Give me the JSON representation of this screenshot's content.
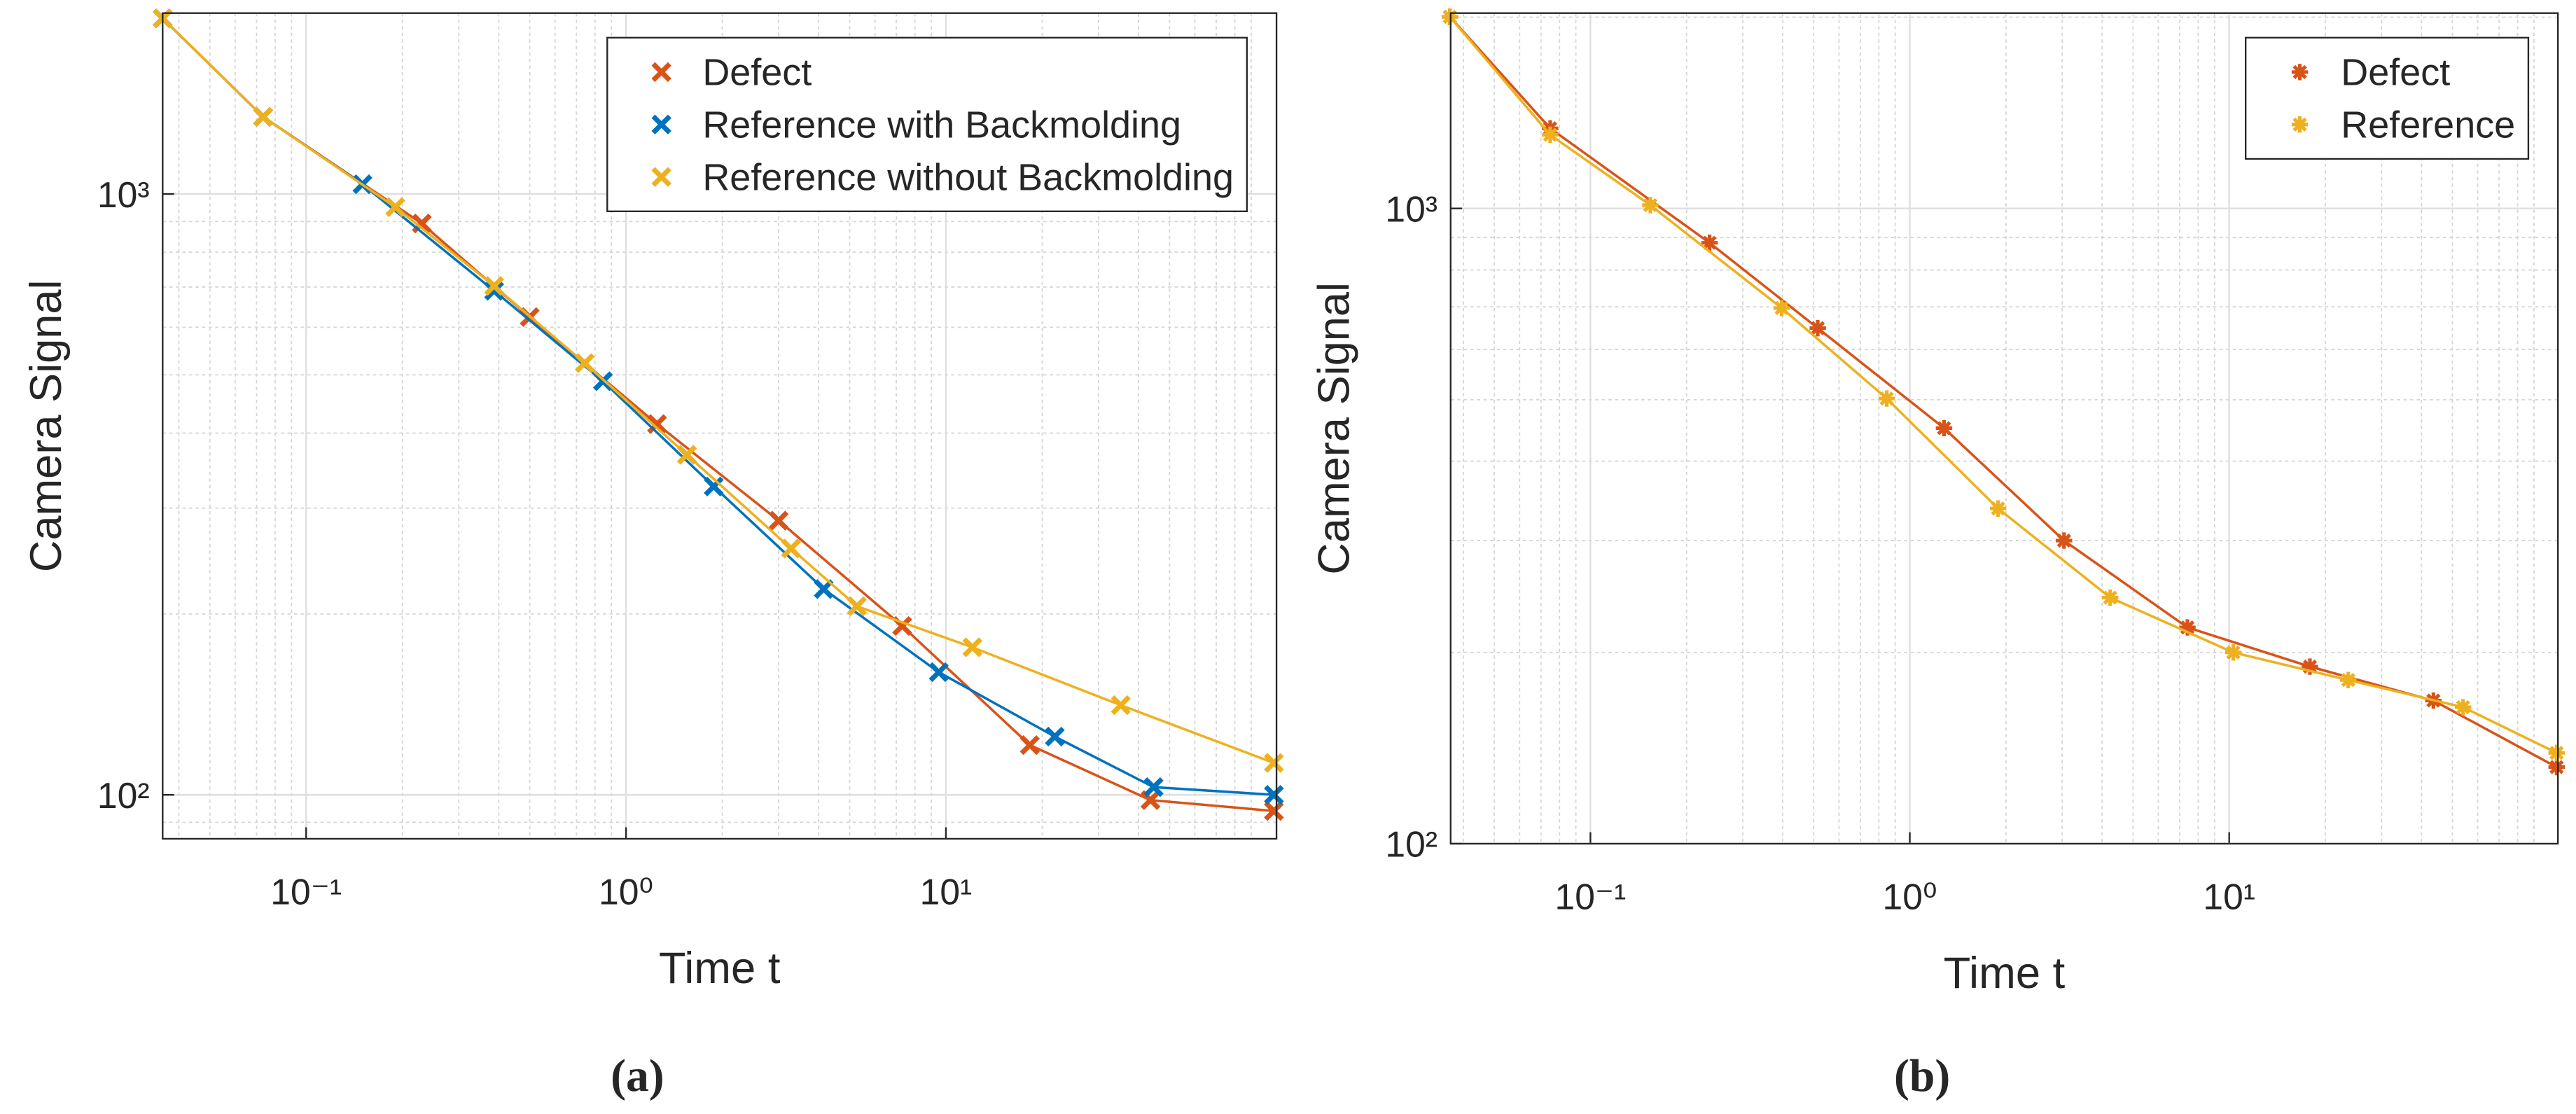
{
  "chart_data": [
    {
      "type": "line",
      "xlabel": "Time t",
      "ylabel": "Camera Signal",
      "caption": "(a)",
      "xscale": "log",
      "yscale": "log",
      "grid": true,
      "minor_grid": true,
      "legend": "northeast",
      "xlim": [
        0.0356,
        108
      ],
      "ylim": [
        84.5,
        2000
      ],
      "xticks": [
        {
          "value": 0.1,
          "label": "10⁻¹"
        },
        {
          "value": 1,
          "label": "10⁰"
        },
        {
          "value": 10,
          "label": "10¹"
        }
      ],
      "yticks": [
        {
          "value": 100,
          "label": "10²"
        },
        {
          "value": 1000,
          "label": "10³"
        }
      ],
      "series": [
        {
          "name": "Defect",
          "color": "#d95319",
          "marker": "x",
          "x": [
            0.0356,
            0.0734,
            0.23,
            0.5,
            1.25,
            3.0,
            7.3,
            18.3,
            43.6,
            106
          ],
          "values": [
            1960,
            1344,
            893,
            624,
            414,
            286,
            191,
            121,
            98,
            94
          ]
        },
        {
          "name": "Reference with Backmolding",
          "color": "#0072bd",
          "marker": "x",
          "x": [
            0.0356,
            0.0734,
            0.15,
            0.387,
            0.847,
            1.88,
            4.15,
            9.5,
            21.9,
            44.6,
            106
          ],
          "values": [
            1960,
            1344,
            1038,
            690,
            488,
            326,
            220,
            160,
            125,
            103,
            100
          ]
        },
        {
          "name": "Reference without Backmolding",
          "color": "#edb120",
          "marker": "x",
          "x": [
            0.0356,
            0.0734,
            0.19,
            0.387,
            0.743,
            1.55,
            3.28,
            5.27,
            12.1,
            35.2,
            106
          ],
          "values": [
            1960,
            1344,
            951,
            703,
            523,
            368,
            257,
            206,
            176,
            141,
            113
          ]
        }
      ]
    },
    {
      "type": "line",
      "xlabel": "Time t",
      "ylabel": "Camera Signal",
      "caption": "(b)",
      "xscale": "log",
      "yscale": "log",
      "grid": true,
      "minor_grid": true,
      "legend": "northeast",
      "xlim": [
        0.0365,
        107
      ],
      "ylim": [
        100,
        2030
      ],
      "xticks": [
        {
          "value": 0.1,
          "label": "10⁻¹"
        },
        {
          "value": 1,
          "label": "10⁰"
        },
        {
          "value": 10,
          "label": "10¹"
        }
      ],
      "yticks": [
        {
          "value": 100,
          "label": "10²"
        },
        {
          "value": 1000,
          "label": "10³"
        }
      ],
      "series": [
        {
          "name": "Defect",
          "color": "#d95319",
          "marker": "*",
          "x": [
            0.0363,
            0.0748,
            0.236,
            0.515,
            1.28,
            3.04,
            7.4,
            17.9,
            43.6,
            106
          ],
          "values": [
            2003,
            1337,
            883,
            648,
            451,
            300,
            219,
            190,
            168,
            132
          ]
        },
        {
          "name": "Reference",
          "color": "#edb120",
          "marker": "*",
          "x": [
            0.0363,
            0.0748,
            0.154,
            0.397,
            0.847,
            1.89,
            4.24,
            10.3,
            23.6,
            54,
            106
          ],
          "values": [
            2003,
            1306,
            1012,
            697,
            502,
            337,
            244,
            200,
            181,
            164,
            139
          ]
        }
      ]
    }
  ]
}
